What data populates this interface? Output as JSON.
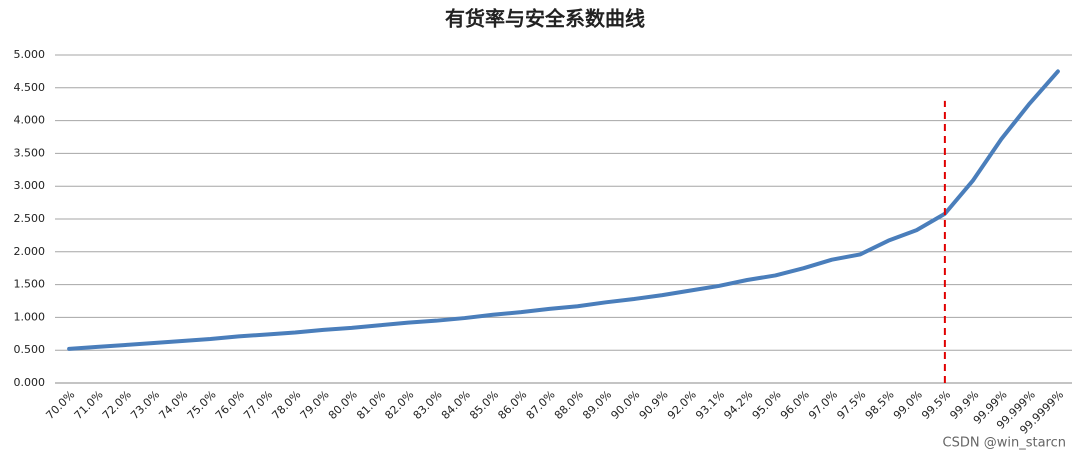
{
  "chart_data": {
    "type": "line",
    "title": "有货率与安全系数曲线",
    "categories": [
      "70.0%",
      "71.0%",
      "72.0%",
      "73.0%",
      "74.0%",
      "75.0%",
      "76.0%",
      "77.0%",
      "78.0%",
      "79.0%",
      "80.0%",
      "81.0%",
      "82.0%",
      "83.0%",
      "84.0%",
      "85.0%",
      "86.0%",
      "87.0%",
      "88.0%",
      "89.0%",
      "90.0%",
      "90.9%",
      "92.0%",
      "93.1%",
      "94.2%",
      "95.0%",
      "96.0%",
      "97.0%",
      "97.5%",
      "98.5%",
      "99.0%",
      "99.5%",
      "99.9%",
      "99.99%",
      "99.999%",
      "99.9999%"
    ],
    "series": [
      {
        "color": "#4a7ebb",
        "values": [
          0.52,
          0.55,
          0.58,
          0.61,
          0.64,
          0.67,
          0.71,
          0.74,
          0.77,
          0.81,
          0.84,
          0.88,
          0.92,
          0.95,
          0.99,
          1.04,
          1.08,
          1.13,
          1.17,
          1.23,
          1.28,
          1.34,
          1.41,
          1.48,
          1.57,
          1.64,
          1.75,
          1.88,
          1.96,
          2.17,
          2.33,
          2.58,
          3.09,
          3.72,
          4.26,
          4.75
        ]
      }
    ],
    "ylim": [
      0,
      5
    ],
    "yticks": [
      {
        "value": 0,
        "label": "0.000"
      },
      {
        "value": 0.5,
        "label": "0.500"
      },
      {
        "value": 1,
        "label": "1.000"
      },
      {
        "value": 1.5,
        "label": "1.500"
      },
      {
        "value": 2,
        "label": "2.000"
      },
      {
        "value": 2.5,
        "label": "2.500"
      },
      {
        "value": 3,
        "label": "3.000"
      },
      {
        "value": 3.5,
        "label": "3.500"
      },
      {
        "value": 4,
        "label": "4.000"
      },
      {
        "value": 4.5,
        "label": "4.500"
      },
      {
        "value": 5,
        "label": "5.000"
      }
    ],
    "grid": true,
    "vline": {
      "x": "99.5%",
      "top": 4.3,
      "color": "#e00000"
    },
    "watermark": "CSDN @win_starcn"
  }
}
